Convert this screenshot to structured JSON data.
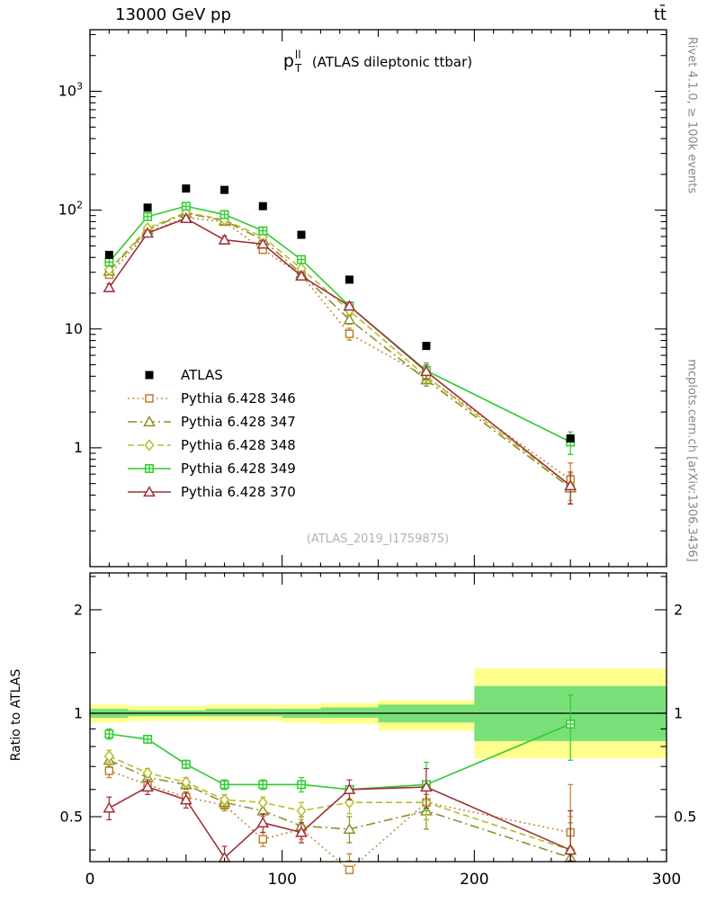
{
  "header": {
    "left": "13000 GeV pp",
    "right": "tt̄"
  },
  "side_notes": {
    "top": "Rivet 4.1.0, ≥ 100k events",
    "bottom": "mcplots.cern.ch [arXiv:1306.3436]"
  },
  "plot": {
    "title_symbol": "p",
    "title_sup": "ll",
    "title_sub": "T",
    "title_text": "(ATLAS dileptonic ttbar)",
    "watermark": "(ATLAS_2019_I1759875)",
    "ratio_ylabel": "Ratio to ATLAS"
  },
  "chart_data": {
    "type": "line",
    "xlabel": "",
    "xlim": [
      0,
      300
    ],
    "x_major_ticks": [
      0,
      100,
      200,
      300
    ],
    "main_ylim": [
      0.1,
      3300
    ],
    "main_yticks": [
      1,
      10,
      100,
      1000
    ],
    "ratio_ylim": [
      0.37,
      2.56
    ],
    "ratio_yticks": [
      0.5,
      1,
      2
    ],
    "ratio_minor_ticks": [
      0.4,
      0.6,
      0.7,
      0.8,
      0.9,
      1.5,
      2.5
    ],
    "x": [
      10,
      30,
      50,
      70,
      90,
      110,
      135,
      175,
      250
    ],
    "bin_edges": [
      0,
      20,
      40,
      60,
      80,
      100,
      120,
      150,
      200,
      300
    ],
    "reference": {
      "name": "ATLAS",
      "color": "#000000",
      "line": null,
      "marker": "square_filled",
      "values": [
        42,
        105,
        152,
        148,
        108,
        62,
        26,
        7.2,
        1.2
      ]
    },
    "series": [
      {
        "name": "Pythia 6.428 346",
        "color": "#c07f2f",
        "line": "dotted",
        "marker": "square_open",
        "values": [
          28.6,
          65.1,
          86.6,
          79.9,
          46.4,
          28.5,
          9.1,
          3.96,
          0.54
        ],
        "ratio": [
          0.68,
          0.62,
          0.57,
          0.54,
          0.43,
          0.46,
          0.35,
          0.55,
          0.45
        ],
        "ratio_err": [
          0.03,
          0.02,
          0.02,
          0.02,
          0.02,
          0.03,
          0.04,
          0.06,
          0.17
        ]
      },
      {
        "name": "Pythia 6.428 347",
        "color": "#8f8f2a",
        "line": "dashdot",
        "marker": "triangle_open",
        "values": [
          30.7,
          68.3,
          94.2,
          81.4,
          56.2,
          29.1,
          12.0,
          3.74,
          0.46
        ],
        "ratio": [
          0.73,
          0.65,
          0.62,
          0.55,
          0.52,
          0.47,
          0.46,
          0.52,
          0.38
        ],
        "ratio_err": [
          0.03,
          0.02,
          0.02,
          0.02,
          0.02,
          0.03,
          0.04,
          0.06,
          0.1
        ]
      },
      {
        "name": "Pythia 6.428 348",
        "color": "#b4be27",
        "line": "dashed",
        "marker": "diamond_open",
        "values": [
          31.5,
          70.4,
          95.8,
          82.9,
          59.4,
          32.2,
          14.3,
          3.96,
          0.48
        ],
        "ratio": [
          0.75,
          0.67,
          0.63,
          0.56,
          0.55,
          0.52,
          0.55,
          0.55,
          0.4
        ],
        "ratio_err": [
          0.03,
          0.02,
          0.02,
          0.02,
          0.02,
          0.03,
          0.04,
          0.06,
          0.1
        ]
      },
      {
        "name": "Pythia 6.428 349",
        "color": "#2ecc2e",
        "line": "solid",
        "marker": "square_cross",
        "values": [
          36.5,
          88.2,
          107.9,
          91.8,
          67.0,
          38.4,
          15.6,
          4.46,
          1.12
        ],
        "ratio": [
          0.87,
          0.84,
          0.71,
          0.62,
          0.62,
          0.62,
          0.6,
          0.62,
          0.93
        ],
        "ratio_err": [
          0.03,
          0.02,
          0.02,
          0.02,
          0.02,
          0.03,
          0.04,
          0.1,
          0.2
        ]
      },
      {
        "name": "Pythia 6.428 370",
        "color": "#a03038",
        "line": "solid",
        "marker": "triangle_open",
        "values": [
          22.3,
          64.1,
          85.1,
          56.2,
          51.8,
          27.9,
          15.6,
          4.39,
          0.48
        ],
        "ratio": [
          0.53,
          0.61,
          0.56,
          0.38,
          0.48,
          0.45,
          0.6,
          0.61,
          0.4
        ],
        "ratio_err": [
          0.04,
          0.03,
          0.03,
          0.03,
          0.03,
          0.03,
          0.04,
          0.08,
          0.12
        ]
      }
    ],
    "ratio_bands": {
      "yellow": {
        "color": "#ffff8d",
        "lo": [
          0.94,
          0.95,
          0.95,
          0.95,
          0.95,
          0.94,
          0.93,
          0.89,
          0.74
        ],
        "hi": [
          1.06,
          1.05,
          1.05,
          1.06,
          1.06,
          1.06,
          1.07,
          1.09,
          1.35
        ]
      },
      "green": {
        "color": "#79e079",
        "lo": [
          0.97,
          0.98,
          0.98,
          0.98,
          0.98,
          0.97,
          0.97,
          0.94,
          0.83
        ],
        "hi": [
          1.03,
          1.02,
          1.02,
          1.03,
          1.03,
          1.03,
          1.04,
          1.06,
          1.2
        ]
      }
    },
    "legend_position": "inside-left"
  }
}
